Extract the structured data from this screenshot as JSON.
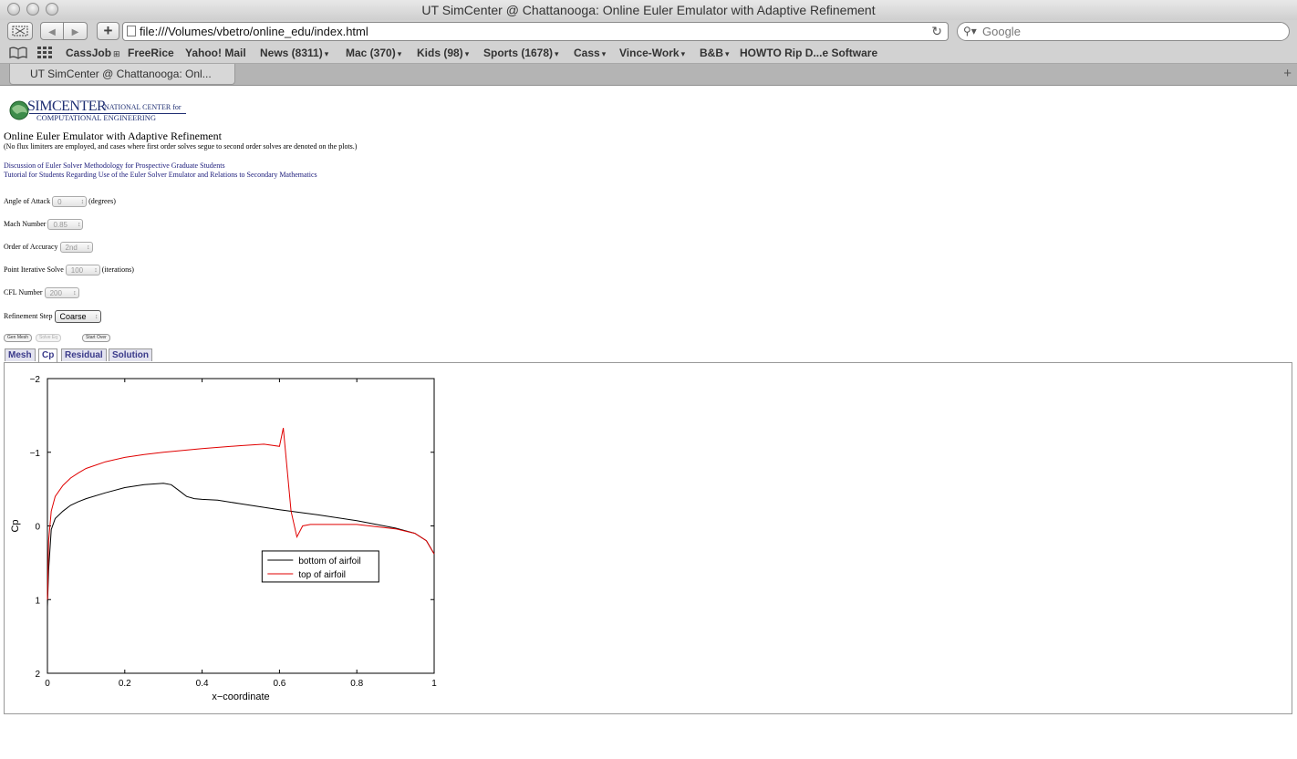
{
  "window": {
    "title": "UT SimCenter @ Chattanooga: Online Euler Emulator with Adaptive Refinement"
  },
  "toolbar": {
    "url": "file:///Volumes/vbetro/online_edu/index.html",
    "search_placeholder": "Google",
    "back_icon": "back-arrow-icon",
    "forward_icon": "forward-arrow-icon"
  },
  "bookmarks": [
    {
      "label": "CassJob",
      "arrow": "⊞"
    },
    {
      "label": "FreeRice",
      "arrow": ""
    },
    {
      "label": "Yahoo! Mail",
      "arrow": ""
    },
    {
      "label": "News (8311)",
      "arrow": "▾"
    },
    {
      "label": "Mac (370)",
      "arrow": "▾"
    },
    {
      "label": "Kids (98)",
      "arrow": "▾"
    },
    {
      "label": "Sports (1678)",
      "arrow": "▾"
    },
    {
      "label": "Cass",
      "arrow": "▾"
    },
    {
      "label": "Vince-Work",
      "arrow": "▾"
    },
    {
      "label": "B&B",
      "arrow": "▾"
    },
    {
      "label": "HOWTO Rip D...e Software",
      "arrow": ""
    }
  ],
  "tab": {
    "label": "UT SimCenter @ Chattanooga: Onl..."
  },
  "page": {
    "logo": {
      "sim": "SIMCENTER",
      "national": "NATIONAL CENTER for",
      "computational": "COMPUTATIONAL ENGINEERING"
    },
    "heading": "Online Euler Emulator with Adaptive Refinement",
    "subheading": "(No flux limiters are employed, and cases where first order solves segue to second order solves are denoted on the plots.)",
    "links": [
      "Discussion of Euler Solver Methodology for Prospective Graduate Students",
      "Tutorial for Students Regarding Use of the Euler Solver Emulator and Relations to Secondary Mathematics"
    ],
    "fields": {
      "aoa_label": "Angle of Attack",
      "aoa_value": "0",
      "aoa_unit": "(degrees)",
      "mach_label": "Mach Number",
      "mach_value": "0.85",
      "order_label": "Order of Accuracy",
      "order_value": "2nd",
      "iter_label": "Point Iterative Solve",
      "iter_value": "100",
      "iter_unit": "(iterations)",
      "cfl_label": "CFL Number",
      "cfl_value": "200",
      "refine_label": "Refinement Step",
      "refine_value": "Coarse"
    },
    "buttons": {
      "gen_mesh": "Gen Mesh",
      "solve_eq": "Solve Eq",
      "start_over": "Start Over"
    },
    "tabs": [
      "Mesh",
      "Cp",
      "Residual",
      "Solution"
    ]
  },
  "chart_data": {
    "type": "line",
    "xlabel": "x−coordinate",
    "ylabel": "Cp",
    "xlim": [
      0,
      1
    ],
    "ylim": [
      2,
      -2
    ],
    "y_inverted": true,
    "xticks": [
      "0",
      "0.2",
      "0.4",
      "0.6",
      "0.8",
      "1"
    ],
    "yticks": [
      "−2",
      "−1",
      "0",
      "1",
      "2"
    ],
    "legend_position": "center-right",
    "series": [
      {
        "name": "bottom of airfoil",
        "color": "#000000",
        "x": [
          0.0,
          0.003,
          0.01,
          0.02,
          0.04,
          0.06,
          0.08,
          0.1,
          0.15,
          0.2,
          0.25,
          0.3,
          0.32,
          0.34,
          0.36,
          0.38,
          0.4,
          0.44,
          0.5,
          0.6,
          0.7,
          0.8,
          0.9,
          0.95,
          0.98,
          1.0
        ],
        "y": [
          1.1,
          0.6,
          0.05,
          -0.1,
          -0.2,
          -0.28,
          -0.33,
          -0.37,
          -0.45,
          -0.52,
          -0.56,
          -0.58,
          -0.56,
          -0.48,
          -0.4,
          -0.37,
          -0.36,
          -0.35,
          -0.3,
          -0.22,
          -0.15,
          -0.07,
          0.03,
          0.1,
          0.2,
          0.38
        ]
      },
      {
        "name": "top of airfoil",
        "color": "#e00000",
        "x": [
          0.0,
          0.003,
          0.01,
          0.02,
          0.04,
          0.06,
          0.08,
          0.1,
          0.15,
          0.2,
          0.25,
          0.3,
          0.4,
          0.5,
          0.56,
          0.6,
          0.61,
          0.63,
          0.645,
          0.66,
          0.68,
          0.75,
          0.8,
          0.9,
          0.95,
          0.98,
          1.0
        ],
        "y": [
          1.0,
          0.2,
          -0.2,
          -0.4,
          -0.55,
          -0.65,
          -0.72,
          -0.78,
          -0.87,
          -0.93,
          -0.97,
          -1.0,
          -1.05,
          -1.09,
          -1.11,
          -1.08,
          -1.33,
          -0.2,
          0.15,
          0.0,
          -0.02,
          -0.02,
          -0.02,
          0.04,
          0.1,
          0.2,
          0.38
        ]
      }
    ]
  }
}
